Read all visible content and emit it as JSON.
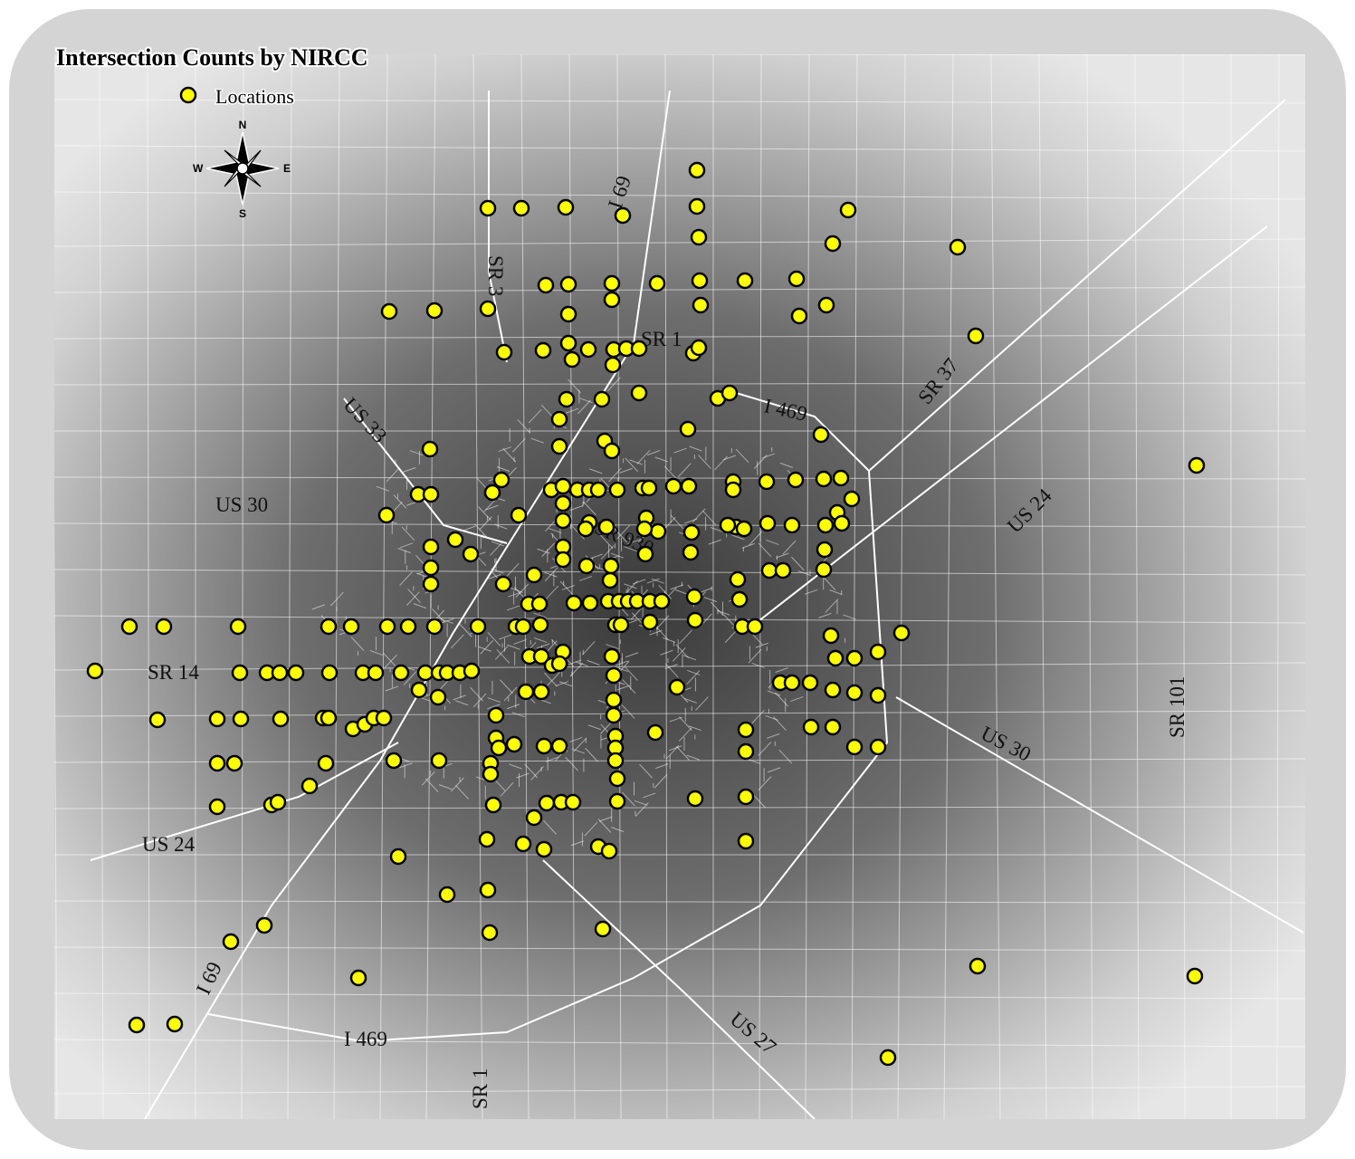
{
  "map": {
    "title": "Intersection Counts by NIRCC",
    "legend": {
      "label": "Locations"
    },
    "compass": {
      "n": "N",
      "e": "E",
      "s": "S",
      "w": "W"
    },
    "road_labels": [
      "US 33",
      "US 30",
      "SR 3",
      "I 69",
      "SR 1",
      "I 469",
      "SR 37",
      "US 24",
      "SR 930",
      "SR 14",
      "SR 101",
      "US 30",
      "US 24",
      "I 69",
      "I 469",
      "US 27",
      "SR 1"
    ]
  }
}
